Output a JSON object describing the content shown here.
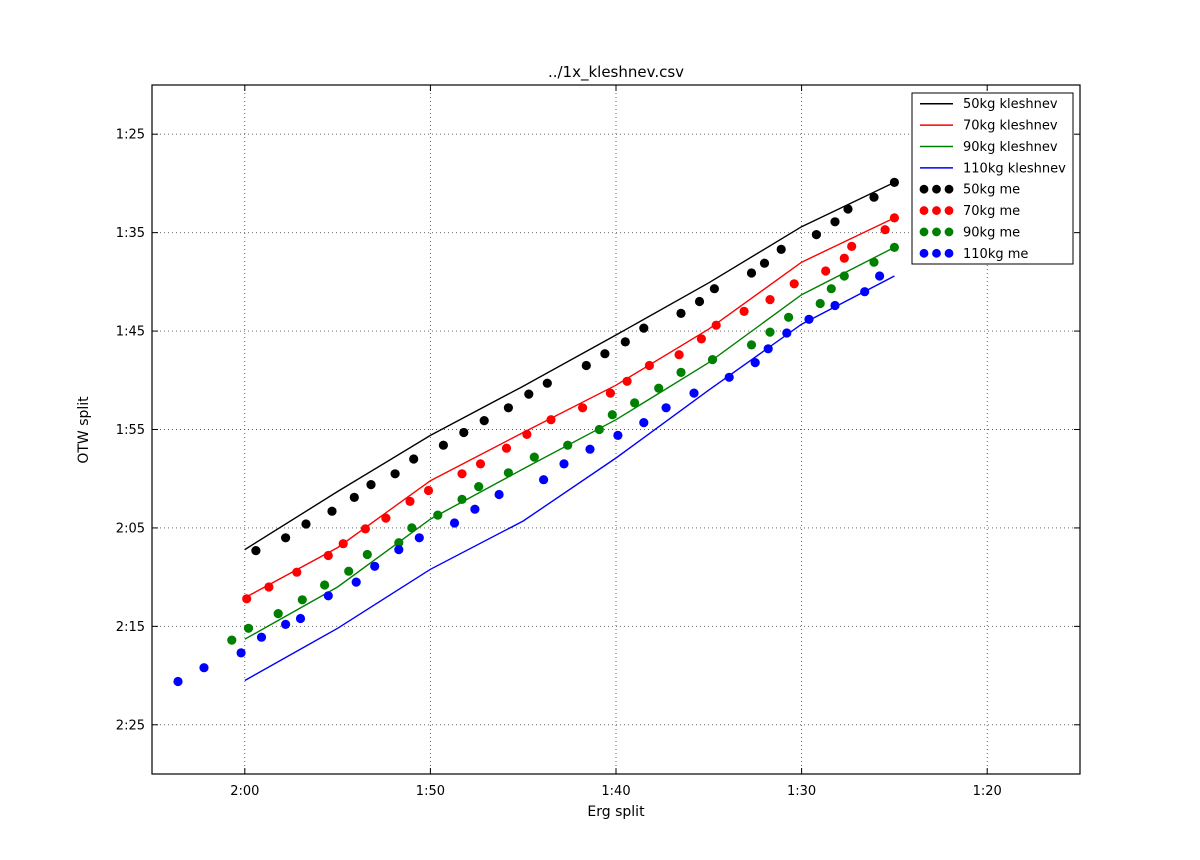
{
  "title": "../1x_kleshnev.csv",
  "axes": {
    "xlabel": "Erg split",
    "ylabel": "OTW split",
    "x_inverted": true,
    "y_inverted": true,
    "grid": "dotted",
    "xlim_seconds": [
      125,
      75
    ],
    "ylim_seconds": [
      80,
      150
    ],
    "x_ticks": [
      {
        "seconds": 120,
        "label": "2:00"
      },
      {
        "seconds": 110,
        "label": "1:50"
      },
      {
        "seconds": 100,
        "label": "1:40"
      },
      {
        "seconds": 90,
        "label": "1:30"
      },
      {
        "seconds": 80,
        "label": "1:20"
      }
    ],
    "y_ticks": [
      {
        "seconds": 85,
        "label": "1:25"
      },
      {
        "seconds": 95,
        "label": "1:35"
      },
      {
        "seconds": 105,
        "label": "1:45"
      },
      {
        "seconds": 115,
        "label": "1:55"
      },
      {
        "seconds": 125,
        "label": "2:05"
      },
      {
        "seconds": 135,
        "label": "2:15"
      },
      {
        "seconds": 145,
        "label": "2:25"
      }
    ]
  },
  "legend": {
    "position": "upper-right",
    "entries": [
      {
        "label": "50kg kleshnev",
        "color": "#000000",
        "marker": "line"
      },
      {
        "label": "70kg kleshnev",
        "color": "#ff0000",
        "marker": "line"
      },
      {
        "label": "90kg kleshnev",
        "color": "#008000",
        "marker": "line"
      },
      {
        "label": "110kg kleshnev",
        "color": "#0000ff",
        "marker": "line"
      },
      {
        "label": "50kg me",
        "color": "#000000",
        "marker": "dots"
      },
      {
        "label": "70kg me",
        "color": "#ff0000",
        "marker": "dots"
      },
      {
        "label": "90kg me",
        "color": "#008000",
        "marker": "dots"
      },
      {
        "label": "110kg me",
        "color": "#0000ff",
        "marker": "dots"
      }
    ]
  },
  "chart_data": {
    "type": "line+scatter",
    "title": "../1x_kleshnev.csv",
    "xlabel": "Erg split",
    "ylabel": "OTW split",
    "units": "seconds per 500m (mm:ss on axes, both axes inverted: faster splits up/right)",
    "series": [
      {
        "name": "50kg kleshnev",
        "style": "line",
        "color": "#000000",
        "points": [
          [
            120,
            127.2
          ],
          [
            115,
            121.3
          ],
          [
            110,
            115.6
          ],
          [
            105,
            110.6
          ],
          [
            100,
            105.4
          ],
          [
            95,
            100.1
          ],
          [
            90,
            94.4
          ],
          [
            85,
            89.9
          ]
        ]
      },
      {
        "name": "70kg kleshnev",
        "style": "line",
        "color": "#ff0000",
        "points": [
          [
            120,
            132.1
          ],
          [
            115,
            127.0
          ],
          [
            110,
            120.2
          ],
          [
            105,
            115.3
          ],
          [
            100,
            110.5
          ],
          [
            95,
            104.8
          ],
          [
            90,
            98.0
          ],
          [
            85,
            93.5
          ]
        ]
      },
      {
        "name": "90kg kleshnev",
        "style": "line",
        "color": "#008000",
        "points": [
          [
            120,
            136.3
          ],
          [
            115,
            131.0
          ],
          [
            110,
            124.1
          ],
          [
            105,
            119.0
          ],
          [
            100,
            114.0
          ],
          [
            95,
            108.2
          ],
          [
            90,
            101.3
          ],
          [
            85,
            96.5
          ]
        ]
      },
      {
        "name": "110kg kleshnev",
        "style": "line",
        "color": "#0000ff",
        "points": [
          [
            120,
            140.5
          ],
          [
            115,
            135.2
          ],
          [
            110,
            129.2
          ],
          [
            105,
            124.3
          ],
          [
            100,
            117.9
          ],
          [
            95,
            111.0
          ],
          [
            90,
            104.3
          ],
          [
            85,
            99.4
          ]
        ]
      },
      {
        "name": "50kg me",
        "style": "scatter",
        "color": "#000000",
        "points": [
          [
            119.4,
            127.3
          ],
          [
            117.8,
            126.0
          ],
          [
            116.7,
            124.6
          ],
          [
            115.3,
            123.3
          ],
          [
            114.1,
            121.9
          ],
          [
            113.2,
            120.6
          ],
          [
            111.9,
            119.5
          ],
          [
            110.9,
            118.0
          ],
          [
            109.3,
            116.6
          ],
          [
            108.2,
            115.3
          ],
          [
            107.1,
            114.1
          ],
          [
            105.8,
            112.8
          ],
          [
            104.7,
            111.4
          ],
          [
            103.7,
            110.3
          ],
          [
            101.6,
            108.5
          ],
          [
            100.6,
            107.3
          ],
          [
            99.5,
            106.1
          ],
          [
            98.5,
            104.7
          ],
          [
            96.5,
            103.2
          ],
          [
            95.5,
            102.0
          ],
          [
            94.7,
            100.7
          ],
          [
            92.7,
            99.1
          ],
          [
            92.0,
            98.1
          ],
          [
            91.1,
            96.7
          ],
          [
            89.2,
            95.2
          ],
          [
            88.2,
            93.9
          ],
          [
            87.5,
            92.6
          ],
          [
            86.1,
            91.4
          ],
          [
            85.0,
            89.9
          ]
        ]
      },
      {
        "name": "70kg me",
        "style": "scatter",
        "color": "#ff0000",
        "points": [
          [
            119.9,
            132.2
          ],
          [
            118.7,
            131.0
          ],
          [
            117.2,
            129.5
          ],
          [
            115.5,
            127.8
          ],
          [
            114.7,
            126.6
          ],
          [
            113.5,
            125.1
          ],
          [
            112.4,
            124.0
          ],
          [
            111.1,
            122.3
          ],
          [
            110.1,
            121.2
          ],
          [
            108.3,
            119.5
          ],
          [
            107.3,
            118.5
          ],
          [
            105.9,
            116.9
          ],
          [
            104.8,
            115.5
          ],
          [
            103.5,
            114.0
          ],
          [
            101.8,
            112.8
          ],
          [
            100.3,
            111.3
          ],
          [
            99.4,
            110.1
          ],
          [
            98.2,
            108.5
          ],
          [
            96.6,
            107.4
          ],
          [
            95.4,
            105.8
          ],
          [
            94.6,
            104.4
          ],
          [
            93.1,
            103.0
          ],
          [
            91.7,
            101.8
          ],
          [
            90.4,
            100.2
          ],
          [
            88.7,
            98.9
          ],
          [
            87.7,
            97.6
          ],
          [
            87.3,
            96.4
          ],
          [
            85.5,
            94.7
          ],
          [
            85.0,
            93.5
          ]
        ]
      },
      {
        "name": "90kg me",
        "style": "scatter",
        "color": "#008000",
        "points": [
          [
            120.7,
            136.4
          ],
          [
            119.8,
            135.2
          ],
          [
            118.2,
            133.7
          ],
          [
            116.9,
            132.3
          ],
          [
            115.7,
            130.8
          ],
          [
            114.4,
            129.4
          ],
          [
            113.4,
            127.7
          ],
          [
            111.7,
            126.5
          ],
          [
            111.0,
            125.0
          ],
          [
            109.6,
            123.7
          ],
          [
            108.3,
            122.1
          ],
          [
            107.4,
            120.8
          ],
          [
            105.8,
            119.4
          ],
          [
            104.4,
            117.8
          ],
          [
            102.6,
            116.6
          ],
          [
            100.9,
            115.0
          ],
          [
            100.2,
            113.5
          ],
          [
            99.0,
            112.3
          ],
          [
            97.7,
            110.8
          ],
          [
            96.5,
            109.2
          ],
          [
            94.8,
            107.9
          ],
          [
            92.7,
            106.4
          ],
          [
            91.7,
            105.1
          ],
          [
            90.7,
            103.6
          ],
          [
            89.0,
            102.2
          ],
          [
            88.4,
            100.7
          ],
          [
            87.7,
            99.4
          ],
          [
            86.1,
            98.0
          ],
          [
            85.0,
            96.5
          ]
        ]
      },
      {
        "name": "110kg me",
        "style": "scatter",
        "color": "#0000ff",
        "points": [
          [
            123.6,
            140.6
          ],
          [
            122.2,
            139.2
          ],
          [
            120.2,
            137.7
          ],
          [
            119.1,
            136.1
          ],
          [
            117.8,
            134.8
          ],
          [
            117.0,
            134.2
          ],
          [
            115.5,
            131.9
          ],
          [
            114.0,
            130.5
          ],
          [
            113.0,
            128.9
          ],
          [
            111.7,
            127.2
          ],
          [
            110.6,
            126.0
          ],
          [
            108.7,
            124.5
          ],
          [
            107.6,
            123.1
          ],
          [
            106.3,
            121.6
          ],
          [
            103.9,
            120.1
          ],
          [
            102.8,
            118.5
          ],
          [
            101.4,
            117.0
          ],
          [
            99.9,
            115.6
          ],
          [
            98.5,
            114.3
          ],
          [
            97.3,
            112.8
          ],
          [
            95.8,
            111.3
          ],
          [
            93.9,
            109.7
          ],
          [
            92.5,
            108.2
          ],
          [
            91.8,
            106.8
          ],
          [
            90.8,
            105.2
          ],
          [
            89.6,
            103.8
          ],
          [
            88.2,
            102.4
          ],
          [
            86.6,
            101.0
          ],
          [
            85.8,
            99.4
          ]
        ]
      }
    ]
  }
}
